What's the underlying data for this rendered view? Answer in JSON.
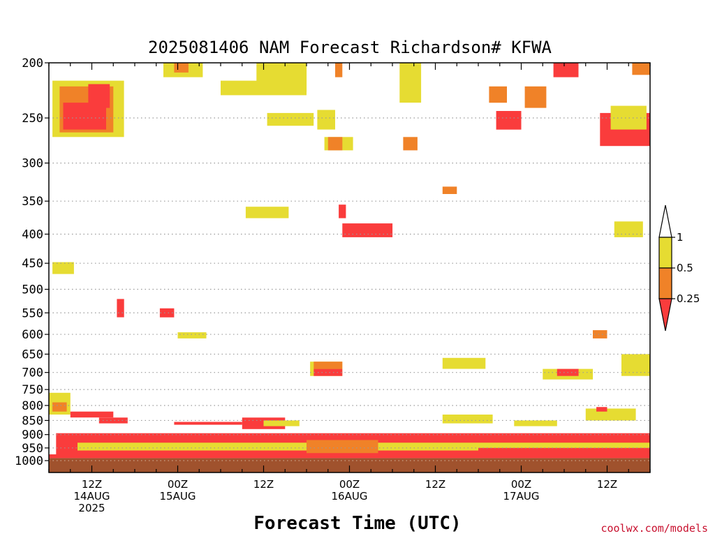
{
  "chart_data": {
    "type": "heatmap",
    "title": "2025081406 NAM Forecast Richardson# KFWA",
    "xlabel": "Forecast Time (UTC)",
    "ylabel": "",
    "y_scale": "log",
    "ylim": [
      1000,
      200
    ],
    "y_ticks": [
      200,
      250,
      300,
      350,
      400,
      450,
      500,
      550,
      600,
      650,
      700,
      750,
      800,
      850,
      900,
      950,
      1000
    ],
    "x_range_hours": [
      0,
      84
    ],
    "x_ticks": [
      {
        "hour": 6,
        "line1": "12Z",
        "line2": "14AUG",
        "line3": "2025"
      },
      {
        "hour": 18,
        "line1": "00Z",
        "line2": "15AUG",
        "line3": ""
      },
      {
        "hour": 30,
        "line1": "12Z",
        "line2": "",
        "line3": ""
      },
      {
        "hour": 42,
        "line1": "00Z",
        "line2": "16AUG",
        "line3": ""
      },
      {
        "hour": 54,
        "line1": "12Z",
        "line2": "",
        "line3": ""
      },
      {
        "hour": 66,
        "line1": "00Z",
        "line2": "17AUG",
        "line3": ""
      },
      {
        "hour": 78,
        "line1": "12Z",
        "line2": "",
        "line3": ""
      }
    ],
    "ground_pressure": 990,
    "levels": [
      {
        "label": "1",
        "color": "#e6dc32"
      },
      {
        "label": "0.5",
        "color": "#f08228"
      },
      {
        "label": "0.25",
        "color": "#fa3c3c"
      }
    ],
    "cells": [
      {
        "t0": 0.5,
        "t1": 10.5,
        "p0": 215,
        "p1": 270,
        "v": 0.7
      },
      {
        "t0": 1.5,
        "t1": 9,
        "p0": 220,
        "p1": 265,
        "v": 0.4
      },
      {
        "t0": 2,
        "t1": 8,
        "p0": 235,
        "p1": 262,
        "v": 0.15
      },
      {
        "t0": 5.5,
        "t1": 8.5,
        "p0": 218,
        "p1": 240,
        "v": 0.15
      },
      {
        "t0": 16,
        "t1": 21.5,
        "p0": 200,
        "p1": 212,
        "v": 0.7
      },
      {
        "t0": 17.5,
        "t1": 19.5,
        "p0": 200,
        "p1": 208,
        "v": 0.4
      },
      {
        "t0": 24,
        "t1": 36,
        "p0": 215,
        "p1": 228,
        "v": 0.7
      },
      {
        "t0": 29,
        "t1": 36,
        "p0": 200,
        "p1": 225,
        "v": 0.7
      },
      {
        "t0": 30.5,
        "t1": 37,
        "p0": 245,
        "p1": 258,
        "v": 0.7
      },
      {
        "t0": 37.5,
        "t1": 40,
        "p0": 242,
        "p1": 262,
        "v": 0.7
      },
      {
        "t0": 38.5,
        "t1": 42.5,
        "p0": 270,
        "p1": 285,
        "v": 0.7
      },
      {
        "t0": 39,
        "t1": 41,
        "p0": 270,
        "p1": 285,
        "v": 0.4
      },
      {
        "t0": 40,
        "t1": 41,
        "p0": 200,
        "p1": 212,
        "v": 0.4
      },
      {
        "t0": 49.5,
        "t1": 51.5,
        "p0": 200,
        "p1": 222,
        "v": 0.4
      },
      {
        "t0": 49.5,
        "t1": 51.5,
        "p0": 270,
        "p1": 285,
        "v": 0.4
      },
      {
        "t0": 49,
        "t1": 52,
        "p0": 200,
        "p1": 235,
        "v": 0.7
      },
      {
        "t0": 62.5,
        "t1": 66,
        "p0": 243,
        "p1": 262,
        "v": 0.15
      },
      {
        "t0": 61.5,
        "t1": 64,
        "p0": 220,
        "p1": 235,
        "v": 0.4
      },
      {
        "t0": 66.5,
        "t1": 69.5,
        "p0": 220,
        "p1": 240,
        "v": 0.4
      },
      {
        "t0": 70.5,
        "t1": 74,
        "p0": 200,
        "p1": 212,
        "v": 0.15
      },
      {
        "t0": 77,
        "t1": 84,
        "p0": 245,
        "p1": 280,
        "v": 0.15
      },
      {
        "t0": 78.5,
        "t1": 83.5,
        "p0": 238,
        "p1": 262,
        "v": 0.7
      },
      {
        "t0": 81.5,
        "t1": 84,
        "p0": 200,
        "p1": 210,
        "v": 0.4
      },
      {
        "t0": 55,
        "t1": 57,
        "p0": 330,
        "p1": 340,
        "v": 0.4
      },
      {
        "t0": 27.5,
        "t1": 33.5,
        "p0": 358,
        "p1": 375,
        "v": 0.7
      },
      {
        "t0": 41,
        "t1": 48,
        "p0": 383,
        "p1": 405,
        "v": 0.15
      },
      {
        "t0": 40.5,
        "t1": 41.5,
        "p0": 355,
        "p1": 375,
        "v": 0.15
      },
      {
        "t0": 79,
        "t1": 83,
        "p0": 380,
        "p1": 405,
        "v": 0.7
      },
      {
        "t0": 0.5,
        "t1": 3.5,
        "p0": 448,
        "p1": 470,
        "v": 0.7
      },
      {
        "t0": 9.5,
        "t1": 10.5,
        "p0": 520,
        "p1": 560,
        "v": 0.15
      },
      {
        "t0": 15.5,
        "t1": 17.5,
        "p0": 540,
        "p1": 560,
        "v": 0.15
      },
      {
        "t0": 18,
        "t1": 22,
        "p0": 595,
        "p1": 610,
        "v": 0.7
      },
      {
        "t0": 36.5,
        "t1": 41,
        "p0": 670,
        "p1": 710,
        "v": 0.7
      },
      {
        "t0": 37,
        "t1": 41,
        "p0": 690,
        "p1": 710,
        "v": 0.15
      },
      {
        "t0": 37,
        "t1": 41,
        "p0": 670,
        "p1": 690,
        "v": 0.4
      },
      {
        "t0": 55,
        "t1": 61,
        "p0": 660,
        "p1": 690,
        "v": 0.7
      },
      {
        "t0": 69,
        "t1": 76,
        "p0": 690,
        "p1": 720,
        "v": 0.7
      },
      {
        "t0": 71,
        "t1": 74,
        "p0": 690,
        "p1": 710,
        "v": 0.15
      },
      {
        "t0": 76,
        "t1": 78,
        "p0": 590,
        "p1": 610,
        "v": 0.4
      },
      {
        "t0": 80,
        "t1": 84,
        "p0": 650,
        "p1": 710,
        "v": 0.7
      },
      {
        "t0": 0,
        "t1": 84,
        "p0": 975,
        "p1": 990,
        "v": 0.15
      },
      {
        "t0": 0,
        "t1": 3,
        "p0": 760,
        "p1": 830,
        "v": 0.7
      },
      {
        "t0": 0.5,
        "t1": 2.5,
        "p0": 790,
        "p1": 820,
        "v": 0.4
      },
      {
        "t0": 3,
        "t1": 9,
        "p0": 820,
        "p1": 840,
        "v": 0.15
      },
      {
        "t0": 7,
        "t1": 11,
        "p0": 840,
        "p1": 860,
        "v": 0.15
      },
      {
        "t0": 17.5,
        "t1": 27,
        "p0": 855,
        "p1": 865,
        "v": 0.15
      },
      {
        "t0": 27,
        "t1": 33,
        "p0": 840,
        "p1": 880,
        "v": 0.15
      },
      {
        "t0": 30,
        "t1": 35,
        "p0": 850,
        "p1": 870,
        "v": 0.7
      },
      {
        "t0": 55,
        "t1": 62,
        "p0": 830,
        "p1": 860,
        "v": 0.7
      },
      {
        "t0": 65,
        "t1": 71,
        "p0": 850,
        "p1": 870,
        "v": 0.7
      },
      {
        "t0": 75,
        "t1": 82,
        "p0": 810,
        "p1": 850,
        "v": 0.7
      },
      {
        "t0": 76.5,
        "t1": 78,
        "p0": 805,
        "p1": 820,
        "v": 0.15
      },
      {
        "t0": 1,
        "t1": 84,
        "p0": 895,
        "p1": 975,
        "v": 0.15
      },
      {
        "t0": 4,
        "t1": 84,
        "p0": 930,
        "p1": 960,
        "v": 0.7
      },
      {
        "t0": 60,
        "t1": 84,
        "p0": 950,
        "p1": 975,
        "v": 0.15
      },
      {
        "t0": 36,
        "t1": 46,
        "p0": 920,
        "p1": 970,
        "v": 0.4
      }
    ]
  }
}
